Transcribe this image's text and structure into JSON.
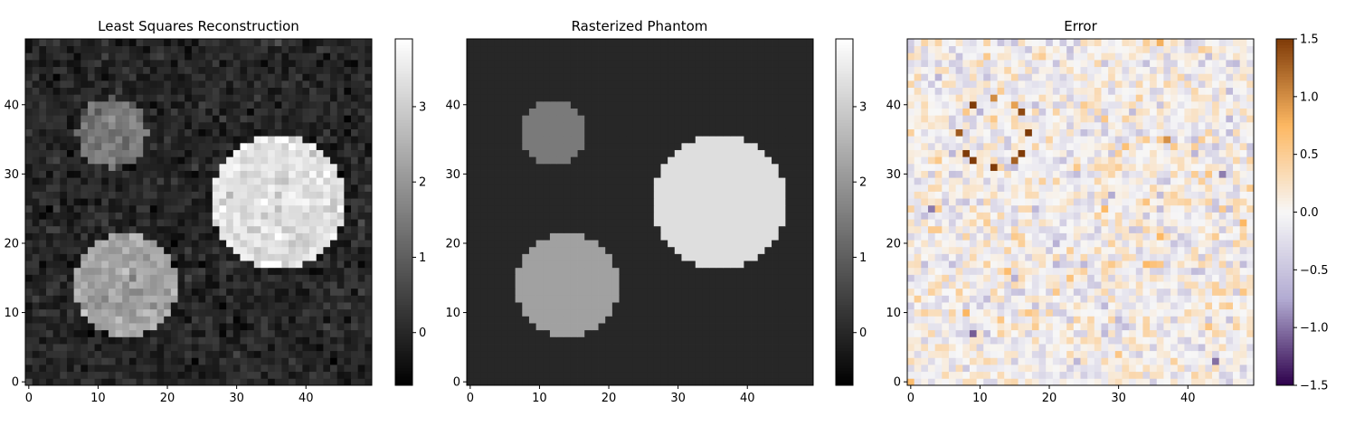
{
  "chart_data": [
    {
      "type": "heatmap",
      "title": "Least Squares Reconstruction",
      "grid": false,
      "image_size": 50,
      "xlim": [
        -0.5,
        49.5
      ],
      "ylim": [
        -0.5,
        49.5
      ],
      "x_ticks": [
        0,
        10,
        20,
        30,
        40
      ],
      "y_ticks": [
        0,
        10,
        20,
        30,
        40
      ],
      "colormap": "gray",
      "noise_std": 0.25,
      "colorbar": {
        "min": -0.7,
        "max": 3.9,
        "ticks": [
          0,
          1,
          2,
          3
        ]
      },
      "circles": [
        {
          "cx": 12.5,
          "cy": 36.5,
          "r": 5.0,
          "value": 1.5
        },
        {
          "cx": 14.5,
          "cy": 14.5,
          "r": 7.6,
          "value": 2.2
        },
        {
          "cx": 36.5,
          "cy": 26.5,
          "r": 9.8,
          "value": 3.3
        }
      ],
      "background_value": 0.0
    },
    {
      "type": "heatmap",
      "title": "Rasterized Phantom",
      "grid": false,
      "image_size": 50,
      "xlim": [
        -0.5,
        49.5
      ],
      "ylim": [
        -0.5,
        49.5
      ],
      "x_ticks": [
        0,
        10,
        20,
        30,
        40
      ],
      "y_ticks": [
        0,
        10,
        20,
        30,
        40
      ],
      "colormap": "gray",
      "colorbar": {
        "min": -0.7,
        "max": 3.9,
        "ticks": [
          0,
          1,
          2,
          3
        ]
      },
      "circles": [
        {
          "cx": 12.5,
          "cy": 36.5,
          "r": 4.6,
          "value": 1.5
        },
        {
          "cx": 14.5,
          "cy": 14.5,
          "r": 7.4,
          "value": 2.2
        },
        {
          "cx": 36.5,
          "cy": 26.5,
          "r": 9.6,
          "value": 3.3
        }
      ],
      "background_value": 0.0
    },
    {
      "type": "heatmap",
      "title": "Error",
      "grid": false,
      "image_size": 50,
      "xlim": [
        -0.5,
        49.5
      ],
      "ylim": [
        -0.5,
        49.5
      ],
      "x_ticks": [
        0,
        10,
        20,
        30,
        40
      ],
      "y_ticks": [
        0,
        10,
        20,
        30,
        40
      ],
      "colormap": "PuOr_r",
      "colorbar": {
        "min": -1.5,
        "max": 1.5,
        "ticks": [
          -1.5,
          -1.0,
          -0.5,
          0.0,
          0.5,
          1.0,
          1.5
        ],
        "tick_labels": [
          "−1.5",
          "−1.0",
          "−0.5",
          "0.0",
          "0.5",
          "1.0",
          "1.5"
        ]
      },
      "colors": {
        "low": "#2d004b",
        "mid": "#f7f7f7",
        "high": "#7f3b08"
      }
    }
  ]
}
